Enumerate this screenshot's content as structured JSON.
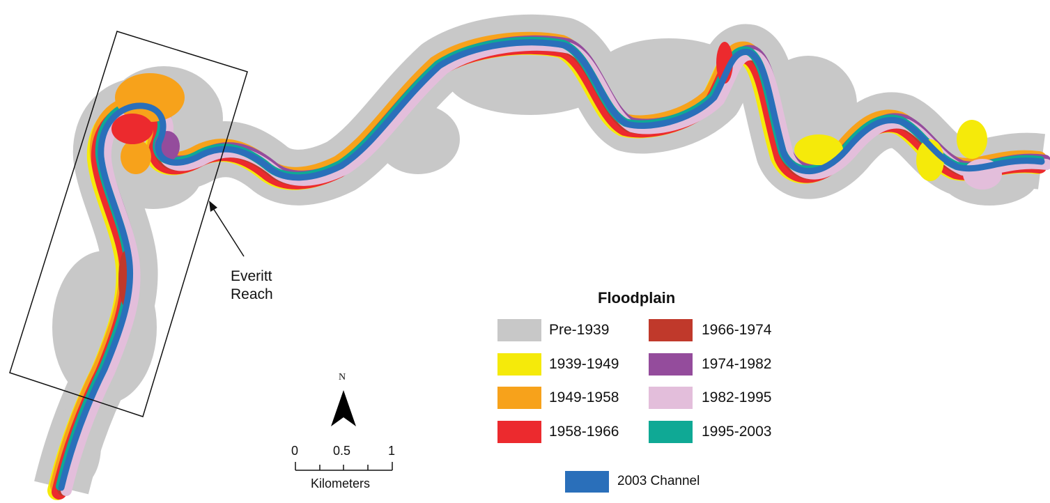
{
  "annotation": {
    "line1": "Everitt",
    "line2": "Reach"
  },
  "north_arrow": {
    "label": "N"
  },
  "scale_bar": {
    "ticks": [
      "0",
      "0.5",
      "1"
    ],
    "unit": "Kilometers"
  },
  "legend": {
    "title": "Floodplain",
    "items": [
      {
        "label": "Pre-1939",
        "color": "#c8c8c8"
      },
      {
        "label": "1939-1949",
        "color": "#f5ea0a"
      },
      {
        "label": "1949-1958",
        "color": "#f7a21b"
      },
      {
        "label": "1958-1966",
        "color": "#ec2a2e"
      },
      {
        "label": "1966-1974",
        "color": "#c0392b"
      },
      {
        "label": "1974-1982",
        "color": "#944c9c"
      },
      {
        "label": "1982-1995",
        "color": "#e3bedb"
      },
      {
        "label": "1995-2003",
        "color": "#0fa995"
      }
    ],
    "channel": {
      "label": "2003 Channel",
      "color": "#2a6fba"
    }
  }
}
